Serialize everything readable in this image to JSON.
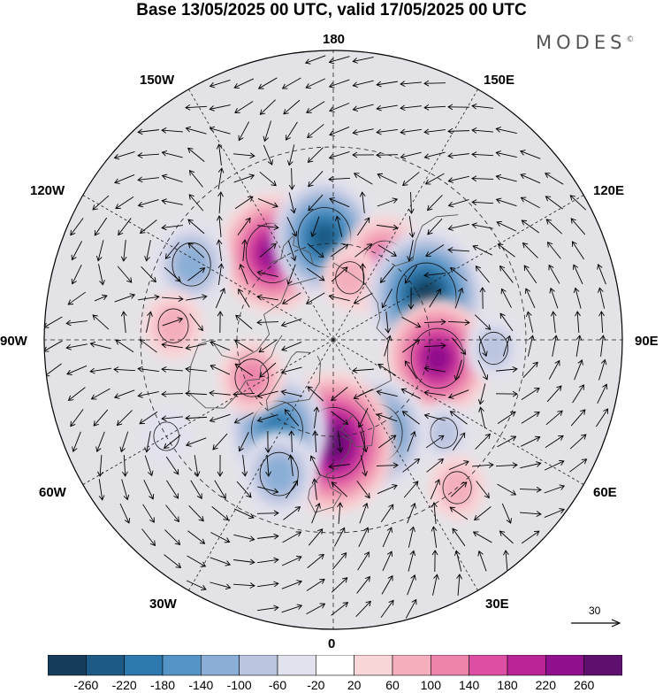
{
  "title": "Base 13/05/2025 00 UTC, valid 17/05/2025 00 UTC",
  "logo": {
    "text": "MODES",
    "mark": "©"
  },
  "longitude_labels": {
    "top": "180",
    "bottom": "0",
    "left": "90W",
    "right": "90E",
    "upper_left": "150W",
    "upper_right": "150E",
    "mid_upper_left": "120W",
    "mid_upper_right": "120E",
    "mid_lower_left": "60W",
    "mid_lower_right": "60E",
    "lower_left": "30W",
    "lower_right": "30E"
  },
  "vector_scale": {
    "label": "30"
  },
  "colorbar": {
    "ticks": [
      "-260",
      "-220",
      "-180",
      "-140",
      "-100",
      "-60",
      "-20",
      "20",
      "60",
      "100",
      "140",
      "180",
      "220",
      "260"
    ],
    "colors": [
      "#163d5c",
      "#1d5b86",
      "#2d79ae",
      "#5594c6",
      "#8aaed6",
      "#bcc5e0",
      "#e2e1ee",
      "#ffffff",
      "#f9d6d8",
      "#f4aebc",
      "#ed84ac",
      "#dc4fa2",
      "#bb2496",
      "#8e108c",
      "#5e106e"
    ]
  },
  "anomalies": [
    {
      "kind": "positive",
      "value": 230,
      "lat": 57,
      "lon": -145
    },
    {
      "kind": "negative",
      "value": -230,
      "lat": 58,
      "lon": -175
    },
    {
      "kind": "positive",
      "value": 180,
      "lat": 62,
      "lon": 145
    },
    {
      "kind": "positive",
      "value": 80,
      "lat": 70,
      "lon": 165
    },
    {
      "kind": "negative",
      "value": -270,
      "lat": 58,
      "lon": 115
    },
    {
      "kind": "positive",
      "value": 230,
      "lat": 57,
      "lon": 80
    },
    {
      "kind": "negative",
      "value": -80,
      "lat": 40,
      "lon": 87
    },
    {
      "kind": "negative",
      "value": -70,
      "lat": 45,
      "lon": 50
    },
    {
      "kind": "negative",
      "value": -220,
      "lat": 58,
      "lon": 25
    },
    {
      "kind": "positive",
      "value": 290,
      "lat": 58,
      "lon": 0
    },
    {
      "kind": "negative",
      "value": -220,
      "lat": 57,
      "lon": -32
    },
    {
      "kind": "negative",
      "value": -140,
      "lat": 45,
      "lon": -22
    },
    {
      "kind": "positive",
      "value": 110,
      "lat": 62,
      "lon": -65
    },
    {
      "kind": "negative",
      "value": -140,
      "lat": 40,
      "lon": -118
    },
    {
      "kind": "positive",
      "value": 90,
      "lat": 40,
      "lon": -95
    },
    {
      "kind": "positive",
      "value": 80,
      "lat": 30,
      "lon": 40
    },
    {
      "kind": "negative",
      "value": -60,
      "lat": 30,
      "lon": -60
    }
  ]
}
